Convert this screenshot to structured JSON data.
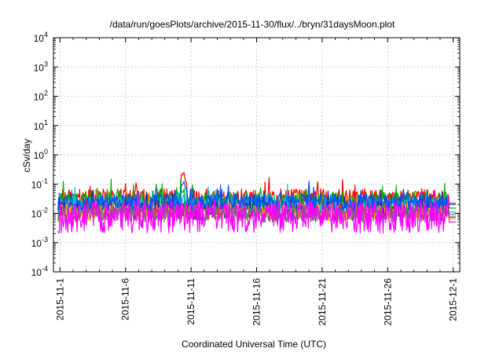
{
  "chart_data": {
    "type": "line",
    "title": "/data/run/goesPlots/archive/2015-11-30/flux/../bryn/31daysMoon.plot",
    "xlabel": "Coordinated Universal Time (UTC)",
    "ylabel": "cSv/day",
    "yscale": "log",
    "ylim": [
      0.0001,
      10000
    ],
    "y_ticks": [
      {
        "value": 10000,
        "base": "10",
        "exp": "4"
      },
      {
        "value": 1000,
        "base": "10",
        "exp": "3"
      },
      {
        "value": 100,
        "base": "10",
        "exp": "2"
      },
      {
        "value": 10,
        "base": "10",
        "exp": "1"
      },
      {
        "value": 1,
        "base": "10",
        "exp": "0"
      },
      {
        "value": 0.1,
        "base": "10",
        "exp": "-1"
      },
      {
        "value": 0.01,
        "base": "10",
        "exp": "-2"
      },
      {
        "value": 0.001,
        "base": "10",
        "exp": "-3"
      },
      {
        "value": 0.0001,
        "base": "10",
        "exp": "-4"
      }
    ],
    "x_range_days": [
      -0.5,
      30.5
    ],
    "x_ticks": [
      {
        "day": 0,
        "label": "2015-11-1"
      },
      {
        "day": 5,
        "label": "2015-11-6"
      },
      {
        "day": 10,
        "label": "2015-11-11"
      },
      {
        "day": 15,
        "label": "2015-11-16"
      },
      {
        "day": 20,
        "label": "2015-11-21"
      },
      {
        "day": 25,
        "label": "2015-11-26"
      },
      {
        "day": 30,
        "label": "2015-12-1"
      }
    ],
    "grid": true,
    "series": [
      {
        "name": "red",
        "color": "#ff0000",
        "base": 0.032,
        "amp": 0.34,
        "end": 0.022,
        "spikes": [
          [
            9.3,
            0.2
          ],
          [
            9.45,
            0.22
          ],
          [
            9.6,
            0.12
          ]
        ]
      },
      {
        "name": "green",
        "color": "#00b000",
        "base": 0.026,
        "amp": 0.3,
        "end": 0.015,
        "spikes": [
          [
            9.3,
            0.05
          ],
          [
            9.45,
            0.06
          ]
        ]
      },
      {
        "name": "cyan",
        "color": "#00c8c8",
        "base": 0.018,
        "amp": 0.32,
        "end": 0.011,
        "spikes": [
          [
            9.4,
            0.04
          ]
        ]
      },
      {
        "name": "dark-blue",
        "color": "#1a237e",
        "base": 0.012,
        "amp": 0.32,
        "end": 0.0075,
        "spikes": []
      },
      {
        "name": "orange",
        "color": "#ffa500",
        "base": 0.011,
        "amp": 0.3,
        "end": 0.0065,
        "spikes": []
      },
      {
        "name": "gray",
        "color": "#707070",
        "base": 0.01,
        "amp": 0.3,
        "end": 0.009,
        "spikes": []
      },
      {
        "name": "blue",
        "color": "#0050ff",
        "base": 0.024,
        "amp": 0.28,
        "end": 0.02,
        "spikes": [
          [
            9.3,
            0.1
          ],
          [
            9.45,
            0.12
          ],
          [
            9.6,
            0.08
          ]
        ]
      },
      {
        "name": "magenta",
        "color": "#ff00ff",
        "base": 0.0075,
        "amp": 0.55,
        "end": 0.005,
        "spikes": []
      }
    ]
  }
}
